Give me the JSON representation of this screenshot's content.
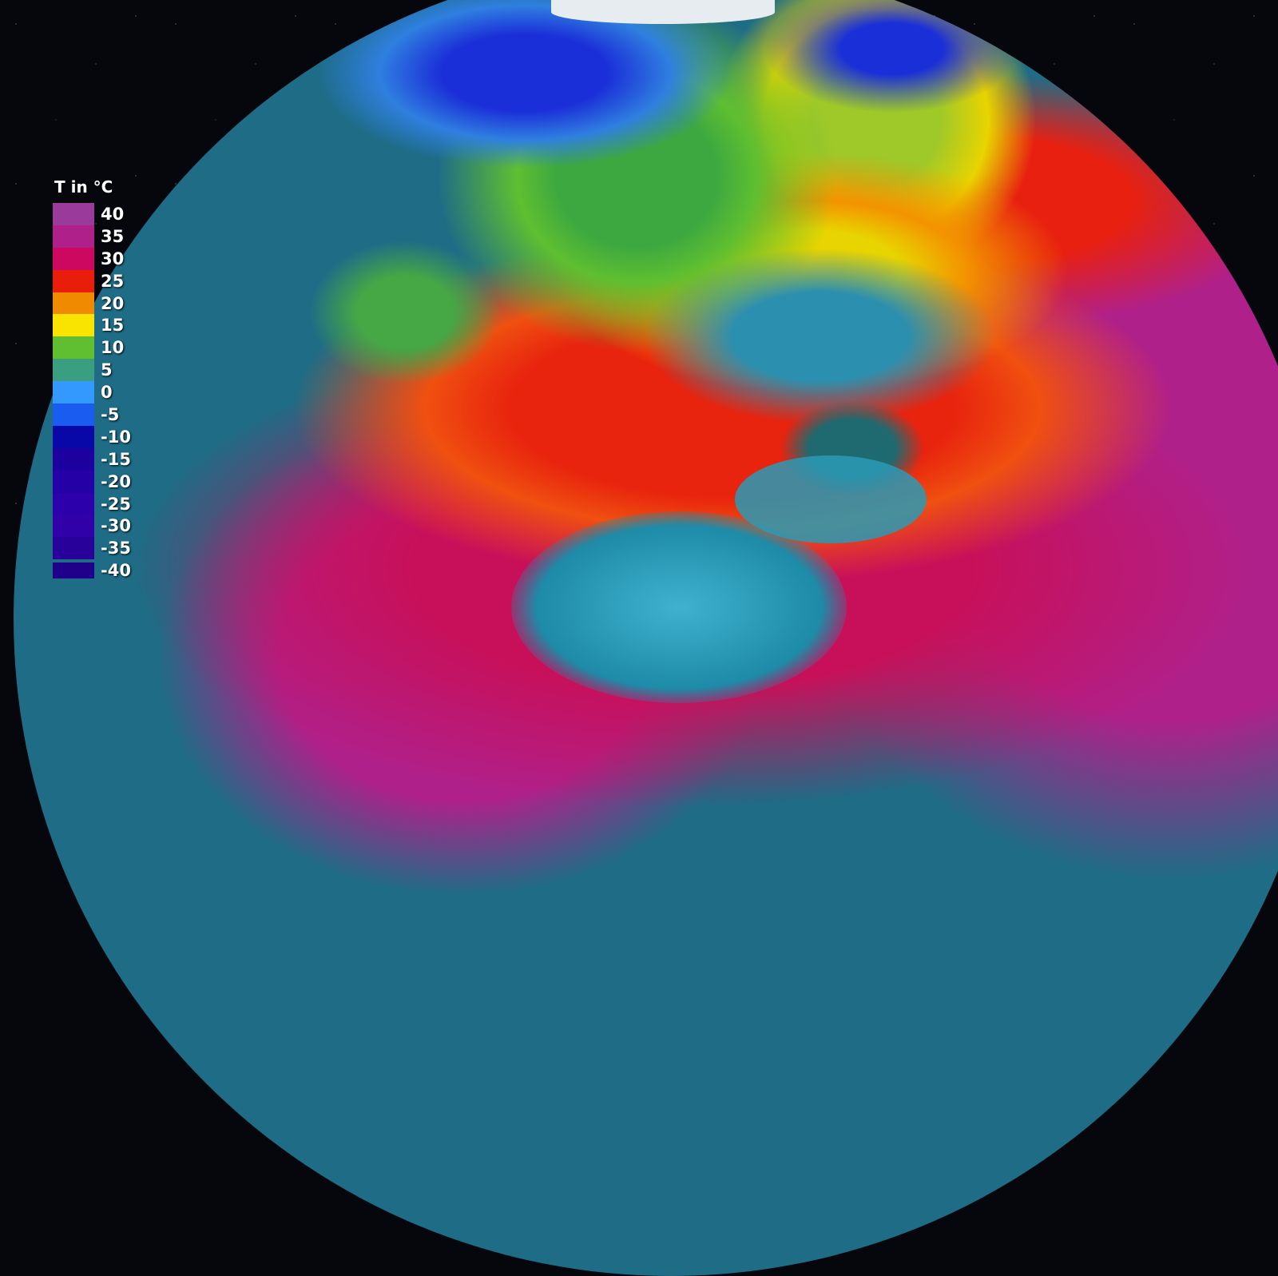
{
  "legend": {
    "title": "T in °C",
    "entries": [
      {
        "label": "40",
        "color": "#9a3a9a"
      },
      {
        "label": "35",
        "color": "#b0208a"
      },
      {
        "label": "30",
        "color": "#cc0860"
      },
      {
        "label": "25",
        "color": "#e81e0a"
      },
      {
        "label": "20",
        "color": "#f08a00"
      },
      {
        "label": "15",
        "color": "#f8e400"
      },
      {
        "label": "10",
        "color": "#5fbf30"
      },
      {
        "label": "5",
        "color": "#3a9f80"
      },
      {
        "label": "0",
        "color": "#3399ff"
      },
      {
        "label": "-5",
        "color": "#1a5cf0"
      },
      {
        "label": "-10",
        "color": "#0808a8"
      },
      {
        "label": "-15",
        "color": "#1c00a0"
      },
      {
        "label": "-20",
        "color": "#2400a6"
      },
      {
        "label": "-25",
        "color": "#2c00aa"
      },
      {
        "label": "-30",
        "color": "#3000a8"
      },
      {
        "label": "-35",
        "color": "#28009a"
      },
      {
        "label": "-40",
        "color": "#20008a"
      }
    ]
  }
}
